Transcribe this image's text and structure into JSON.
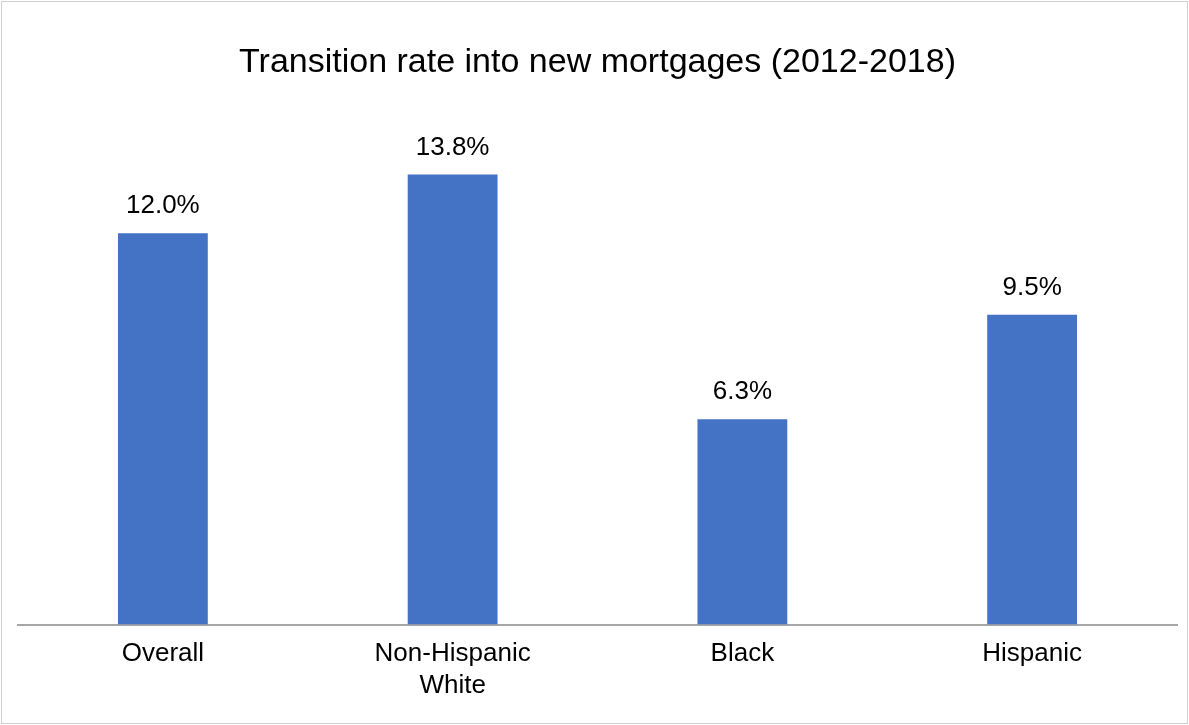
{
  "chart_data": {
    "type": "bar",
    "title": "Transition rate into new mortgages (2012-2018)",
    "categories": [
      "Overall",
      "Non-Hispanic White",
      "Black",
      "Hispanic"
    ],
    "values": [
      12.0,
      13.8,
      6.3,
      9.5
    ],
    "color": "#4472c4",
    "value_labels": [
      "12.0%",
      "13.8%",
      "6.3%",
      "9.5%"
    ],
    "grid": false,
    "legend": false,
    "tick_labels": "x"
  }
}
